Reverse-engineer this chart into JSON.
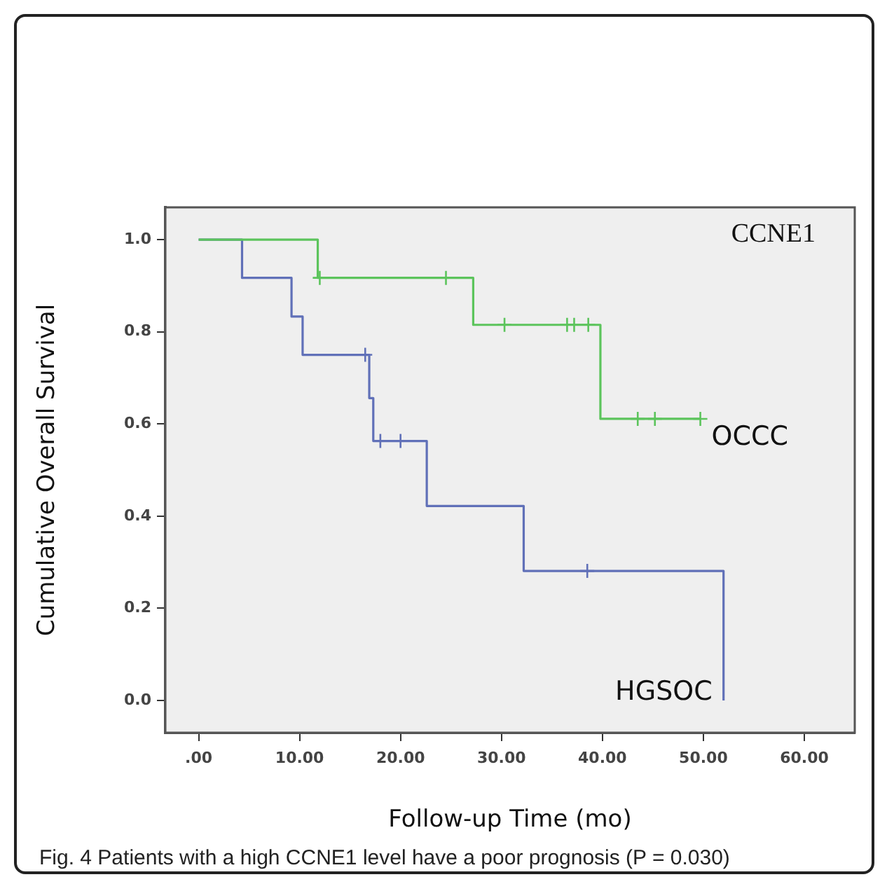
{
  "chart_data": {
    "type": "step",
    "title": "CCNE1",
    "xlabel": "Follow-up Time (mo)",
    "ylabel": "Cumulative Overall Survival",
    "annotations": [
      "Fig. 4 Patients with a high CCNE1 level have a poor prognosis (P = 0.030)"
    ],
    "xlim": [
      -3.3,
      65
    ],
    "ylim": [
      -0.07,
      1.07
    ],
    "xticks": [
      {
        "value": 0,
        "label": ".00"
      },
      {
        "value": 10,
        "label": "10.00"
      },
      {
        "value": 20,
        "label": "20.00"
      },
      {
        "value": 30,
        "label": "30.00"
      },
      {
        "value": 40,
        "label": "40.00"
      },
      {
        "value": 50,
        "label": "50.00"
      },
      {
        "value": 60,
        "label": "60.00"
      }
    ],
    "yticks": [
      {
        "value": 0,
        "label": "0.0"
      },
      {
        "value": 0.2,
        "label": "0.2"
      },
      {
        "value": 0.4,
        "label": "0.4"
      },
      {
        "value": 0.6,
        "label": "0.6"
      },
      {
        "value": 0.8,
        "label": "0.8"
      },
      {
        "value": 1,
        "label": "1.0"
      }
    ],
    "legend": false,
    "marker": "none",
    "line_style": "solid",
    "series": [
      {
        "name": "OCCC",
        "type": "step",
        "color": "#5cc45c",
        "x": [
          0,
          11.8,
          12,
          24.5,
          27.2,
          30.3,
          36.5,
          37.2,
          38.6,
          39.8,
          43.5,
          45.2,
          49.7
        ],
        "values": [
          1,
          0.917,
          0.917,
          0.917,
          0.815,
          0.815,
          0.815,
          0.815,
          0.815,
          0.611,
          0.611,
          0.611,
          0.611
        ]
      },
      {
        "name": "HGSOC",
        "type": "step",
        "color": "#6070b8",
        "x": [
          0,
          4.3,
          9.2,
          10.3,
          16.5,
          16.9,
          17.3,
          18,
          20,
          22.6,
          32.2,
          38.5,
          52
        ],
        "values": [
          1,
          0.917,
          0.833,
          0.75,
          0.75,
          0.656,
          0.563,
          0.563,
          0.563,
          0.422,
          0.281,
          0.281,
          0
        ]
      },
      {
        "type": "scatter",
        "marker": "cross",
        "color": "#5cc45c",
        "x": [
          12,
          24.5,
          30.3,
          36.5,
          37.2,
          38.6,
          43.5,
          45.2,
          49.7
        ],
        "values": [
          0.917,
          0.917,
          0.815,
          0.815,
          0.815,
          0.815,
          0.611,
          0.611,
          0.611
        ]
      },
      {
        "type": "scatter",
        "marker": "cross",
        "color": "#6070b8",
        "x": [
          16.5,
          18,
          20,
          38.5
        ],
        "values": [
          0.75,
          0.563,
          0.563,
          0.281
        ]
      }
    ]
  }
}
